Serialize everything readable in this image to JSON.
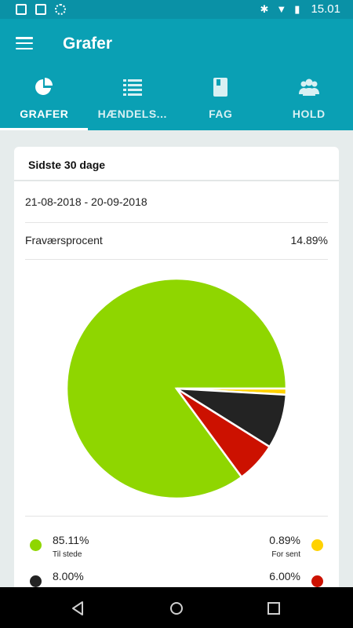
{
  "status_bar": {
    "time": "15.01",
    "icons": [
      "image-icon",
      "download-icon",
      "sync-icon",
      "bluetooth-icon",
      "wifi-icon",
      "battery-icon"
    ]
  },
  "app_bar": {
    "title": "Grafer"
  },
  "tabs": [
    {
      "label": "GRAFER",
      "icon": "pie-chart-icon",
      "active": true
    },
    {
      "label": "HÆNDELS...",
      "icon": "list-icon",
      "active": false
    },
    {
      "label": "FAG",
      "icon": "book-icon",
      "active": false
    },
    {
      "label": "HOLD",
      "icon": "group-icon",
      "active": false
    }
  ],
  "card": {
    "header": "Sidste 30 dage",
    "date_range": "21-08-2018 - 20-09-2018",
    "absence_label": "Fraværsprocent",
    "absence_value": "14.89%"
  },
  "chart_data": {
    "type": "pie",
    "slices": [
      {
        "label": "Til stede",
        "value": 85.11,
        "color": "#8fd600"
      },
      {
        "label": "For sent",
        "value": 0.89,
        "color": "#ffd200"
      },
      {
        "label": "",
        "value": 8.0,
        "color": "#232323"
      },
      {
        "label": "",
        "value": 6.0,
        "color": "#cc1100"
      }
    ]
  },
  "legend": {
    "left": [
      {
        "value": "85.11%",
        "label": "Til stede",
        "color": "#8fd600"
      },
      {
        "value": "8.00%",
        "label": "",
        "color": "#232323"
      }
    ],
    "right": [
      {
        "value": "0.89%",
        "label": "For sent",
        "color": "#ffd200"
      },
      {
        "value": "6.00%",
        "label": "",
        "color": "#cc1100"
      }
    ]
  }
}
